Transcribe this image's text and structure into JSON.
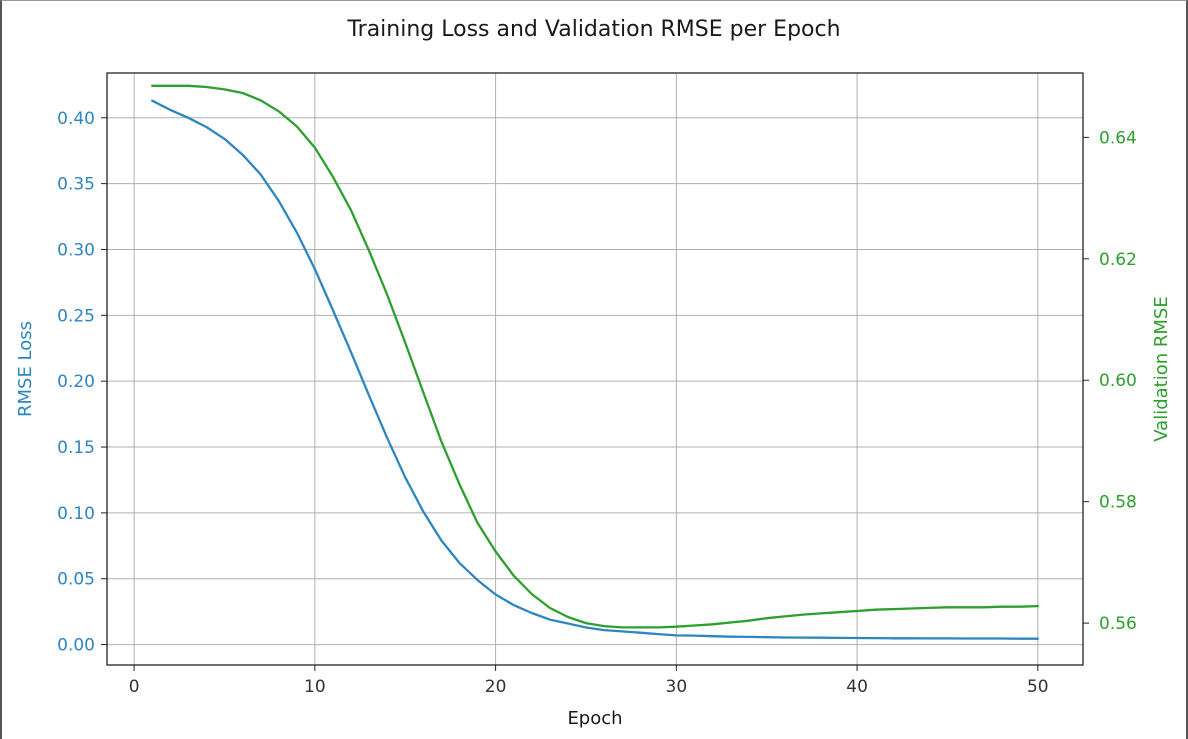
{
  "chart_data": {
    "type": "line",
    "title": "Training Loss and Validation RMSE per Epoch",
    "xlabel": "Epoch",
    "ylabel": "RMSE Loss",
    "ylabel_right": "Validation RMSE",
    "xlim": [
      -1.5,
      52.5
    ],
    "ylim": [
      -0.0155,
      0.434
    ],
    "ylim_right": [
      0.5531,
      0.6506
    ],
    "xticks": [
      0,
      10,
      20,
      30,
      40,
      50
    ],
    "yticks": [
      0.0,
      0.05,
      0.1,
      0.15,
      0.2,
      0.25,
      0.3,
      0.35,
      0.4
    ],
    "yticks_right": [
      0.56,
      0.58,
      0.6,
      0.62,
      0.64
    ],
    "grid": true,
    "colors": {
      "train": "#2e86c1",
      "val": "#2ca02c"
    },
    "x": [
      1,
      2,
      3,
      4,
      5,
      6,
      7,
      8,
      9,
      10,
      11,
      12,
      13,
      14,
      15,
      16,
      17,
      18,
      19,
      20,
      21,
      22,
      23,
      24,
      25,
      26,
      27,
      28,
      29,
      30,
      31,
      32,
      33,
      34,
      35,
      36,
      37,
      38,
      39,
      40,
      41,
      42,
      43,
      44,
      45,
      46,
      47,
      48,
      49,
      50
    ],
    "series": [
      {
        "axis": "left",
        "values": [
          0.413,
          0.406,
          0.4,
          0.393,
          0.384,
          0.372,
          0.357,
          0.337,
          0.313,
          0.285,
          0.254,
          0.222,
          0.189,
          0.157,
          0.127,
          0.101,
          0.079,
          0.062,
          0.049,
          0.038,
          0.03,
          0.024,
          0.019,
          0.016,
          0.013,
          0.011,
          0.01,
          0.009,
          0.008,
          0.007,
          0.0068,
          0.0064,
          0.006,
          0.0058,
          0.0056,
          0.0054,
          0.0053,
          0.0052,
          0.0051,
          0.005,
          0.0049,
          0.0048,
          0.0048,
          0.0047,
          0.0047,
          0.0046,
          0.0046,
          0.0046,
          0.0045,
          0.0045
        ]
      },
      {
        "axis": "right",
        "values": [
          0.6485,
          0.6485,
          0.6485,
          0.6483,
          0.6479,
          0.6473,
          0.6461,
          0.6443,
          0.6418,
          0.6383,
          0.6335,
          0.628,
          0.6213,
          0.6141,
          0.6062,
          0.598,
          0.5899,
          0.5829,
          0.5765,
          0.5718,
          0.5678,
          0.5648,
          0.5625,
          0.561,
          0.56,
          0.5595,
          0.5593,
          0.5593,
          0.5593,
          0.5594,
          0.5596,
          0.5598,
          0.5601,
          0.5604,
          0.5608,
          0.5611,
          0.5614,
          0.5616,
          0.5618,
          0.562,
          0.5622,
          0.5623,
          0.5624,
          0.5625,
          0.5626,
          0.5626,
          0.5626,
          0.5627,
          0.5627,
          0.5628
        ]
      }
    ]
  }
}
